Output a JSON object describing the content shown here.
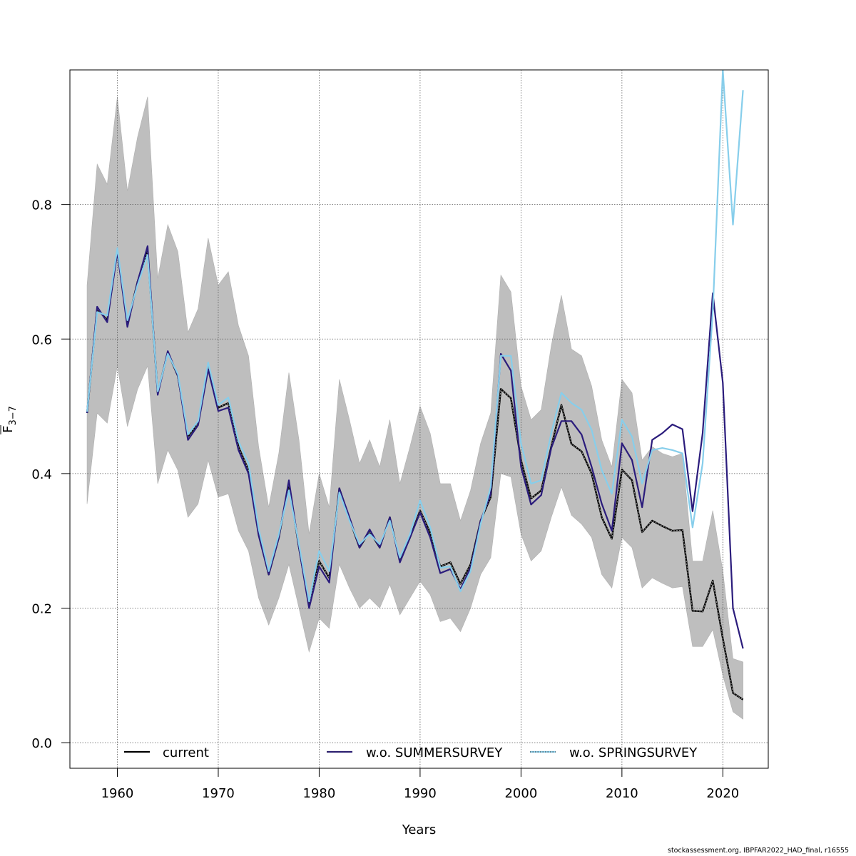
{
  "chart_data": {
    "type": "line",
    "title": "",
    "xlabel": "Years",
    "ylabel": "F̅ 3−7",
    "ylabel_main": "F",
    "ylabel_sub": "3−7",
    "xlim": [
      1955.3,
      2024.5
    ],
    "ylim": [
      -0.038,
      1.0
    ],
    "x_ticks": [
      1960,
      1970,
      1980,
      1990,
      2000,
      2010,
      2020
    ],
    "x_tick_labels": [
      "1960",
      "1970",
      "1980",
      "1990",
      "2000",
      "2010",
      "2020"
    ],
    "y_ticks": [
      0.0,
      0.2,
      0.4,
      0.6,
      0.8
    ],
    "y_tick_labels": [
      "0.0",
      "0.2",
      "0.4",
      "0.6",
      "0.8"
    ],
    "grid": true,
    "legend_position": "bottom",
    "x": [
      1957,
      1958,
      1959,
      1960,
      1961,
      1962,
      1963,
      1964,
      1965,
      1966,
      1967,
      1968,
      1969,
      1970,
      1971,
      1972,
      1973,
      1974,
      1975,
      1976,
      1977,
      1978,
      1979,
      1980,
      1981,
      1982,
      1983,
      1984,
      1985,
      1986,
      1987,
      1988,
      1989,
      1990,
      1991,
      1992,
      1993,
      1994,
      1995,
      1996,
      1997,
      1998,
      1999,
      2000,
      2001,
      2002,
      2003,
      2004,
      2005,
      2006,
      2007,
      2008,
      2009,
      2010,
      2011,
      2012,
      2013,
      2014,
      2015,
      2016,
      2017,
      2018,
      2019,
      2020,
      2021,
      2022
    ],
    "confidence_band": {
      "name": "current 95% CI",
      "color": "#bebebe",
      "upper": [
        0.68,
        0.86,
        0.83,
        0.96,
        0.82,
        0.9,
        0.96,
        0.69,
        0.77,
        0.73,
        0.61,
        0.645,
        0.75,
        0.68,
        0.7,
        0.62,
        0.575,
        0.44,
        0.35,
        0.43,
        0.55,
        0.45,
        0.31,
        0.4,
        0.35,
        0.54,
        0.48,
        0.415,
        0.45,
        0.41,
        0.48,
        0.385,
        0.44,
        0.5,
        0.46,
        0.385,
        0.385,
        0.33,
        0.375,
        0.445,
        0.49,
        0.695,
        0.67,
        0.53,
        0.48,
        0.495,
        0.59,
        0.665,
        0.585,
        0.575,
        0.53,
        0.45,
        0.41,
        0.54,
        0.52,
        0.42,
        0.44,
        0.43,
        0.425,
        0.43,
        0.27,
        0.27,
        0.345,
        0.255,
        0.125,
        0.12
      ],
      "lower": [
        0.355,
        0.49,
        0.475,
        0.56,
        0.47,
        0.525,
        0.56,
        0.385,
        0.435,
        0.405,
        0.335,
        0.355,
        0.42,
        0.365,
        0.37,
        0.315,
        0.285,
        0.215,
        0.175,
        0.215,
        0.265,
        0.2,
        0.135,
        0.185,
        0.17,
        0.265,
        0.23,
        0.2,
        0.215,
        0.2,
        0.235,
        0.19,
        0.215,
        0.24,
        0.22,
        0.18,
        0.185,
        0.165,
        0.2,
        0.25,
        0.275,
        0.4,
        0.395,
        0.31,
        0.27,
        0.285,
        0.335,
        0.38,
        0.338,
        0.325,
        0.305,
        0.25,
        0.23,
        0.305,
        0.29,
        0.23,
        0.245,
        0.237,
        0.23,
        0.232,
        0.143,
        0.143,
        0.168,
        0.1,
        0.046,
        0.035
      ]
    },
    "series": [
      {
        "name": "current",
        "color": "#000000",
        "style": "solid",
        "values": [
          0.49,
          0.645,
          0.628,
          0.732,
          0.622,
          0.685,
          0.73,
          0.52,
          0.58,
          0.545,
          0.455,
          0.475,
          0.558,
          0.498,
          0.505,
          0.44,
          0.405,
          0.31,
          0.25,
          0.305,
          0.385,
          0.29,
          0.205,
          0.27,
          0.245,
          0.378,
          0.332,
          0.29,
          0.314,
          0.29,
          0.335,
          0.27,
          0.305,
          0.345,
          0.312,
          0.262,
          0.268,
          0.236,
          0.265,
          0.33,
          0.365,
          0.526,
          0.512,
          0.42,
          0.363,
          0.375,
          0.44,
          0.502,
          0.444,
          0.433,
          0.4,
          0.335,
          0.303,
          0.406,
          0.39,
          0.313,
          0.33,
          0.322,
          0.315,
          0.316,
          0.196,
          0.195,
          0.241,
          0.155,
          0.074,
          0.064
        ]
      },
      {
        "name": "w.o. SUMMERSURVEY",
        "color": "#2b1c7c",
        "style": "solid",
        "values": [
          0.49,
          0.648,
          0.625,
          0.73,
          0.618,
          0.685,
          0.738,
          0.517,
          0.582,
          0.545,
          0.45,
          0.472,
          0.555,
          0.493,
          0.498,
          0.435,
          0.4,
          0.308,
          0.25,
          0.305,
          0.39,
          0.29,
          0.2,
          0.262,
          0.238,
          0.378,
          0.335,
          0.29,
          0.317,
          0.29,
          0.335,
          0.268,
          0.305,
          0.342,
          0.305,
          0.252,
          0.258,
          0.228,
          0.26,
          0.33,
          0.37,
          0.578,
          0.553,
          0.41,
          0.354,
          0.368,
          0.438,
          0.478,
          0.478,
          0.458,
          0.41,
          0.355,
          0.315,
          0.445,
          0.42,
          0.35,
          0.45,
          0.46,
          0.473,
          0.466,
          0.344,
          0.46,
          0.668,
          0.535,
          0.2,
          0.14
        ]
      },
      {
        "name": "w.o. SPRINGSURVEY",
        "color": "#87ceeb",
        "style": "dotted",
        "values": [
          0.492,
          0.64,
          0.635,
          0.735,
          0.628,
          0.68,
          0.725,
          0.522,
          0.578,
          0.548,
          0.458,
          0.478,
          0.565,
          0.502,
          0.513,
          0.448,
          0.415,
          0.318,
          0.255,
          0.31,
          0.375,
          0.295,
          0.21,
          0.285,
          0.255,
          0.372,
          0.33,
          0.295,
          0.31,
          0.295,
          0.33,
          0.275,
          0.31,
          0.36,
          0.32,
          0.26,
          0.262,
          0.225,
          0.255,
          0.325,
          0.38,
          0.575,
          0.575,
          0.445,
          0.385,
          0.39,
          0.46,
          0.52,
          0.505,
          0.495,
          0.465,
          0.405,
          0.37,
          0.48,
          0.455,
          0.385,
          0.435,
          0.438,
          0.435,
          0.43,
          0.32,
          0.415,
          0.64,
          1.0,
          0.77,
          0.97
        ]
      }
    ],
    "legend": [
      {
        "label": "current",
        "color": "#000000"
      },
      {
        "label": "w.o. SUMMERSURVEY",
        "color": "#2b1c7c"
      },
      {
        "label": "w.o. SPRINGSURVEY",
        "color": "#87ceeb"
      }
    ]
  },
  "footer": "stockassessment.org, IBPFAR2022_HAD_final, r16555"
}
